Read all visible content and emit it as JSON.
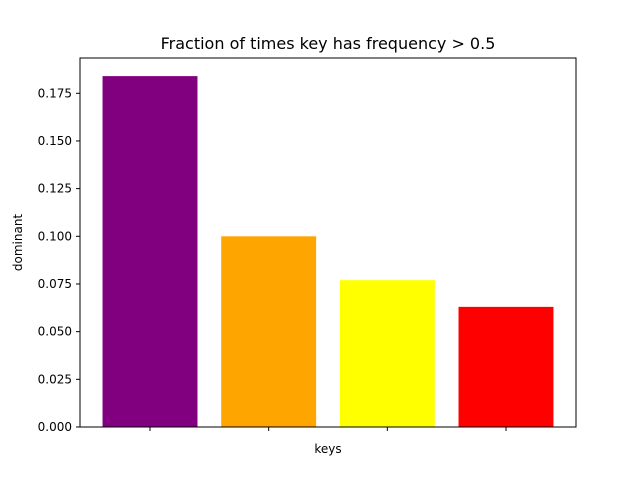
{
  "chart_data": {
    "type": "bar",
    "title": "Fraction of times key has frequency  > 0.5",
    "xlabel": "keys",
    "ylabel": "dominant",
    "categories": [
      "",
      "",
      "",
      ""
    ],
    "values": [
      0.184,
      0.1,
      0.077,
      0.063
    ],
    "colors": [
      "#800080",
      "#FFA500",
      "#FFFF00",
      "#FF0000"
    ],
    "ylim": [
      0,
      0.1935
    ],
    "yticks": [
      "0.000",
      "0.025",
      "0.050",
      "0.075",
      "0.100",
      "0.125",
      "0.150",
      "0.175"
    ],
    "ytick_values": [
      0,
      0.025,
      0.05,
      0.075,
      0.1,
      0.125,
      0.15,
      0.175
    ],
    "grid": false,
    "legend": "none"
  }
}
